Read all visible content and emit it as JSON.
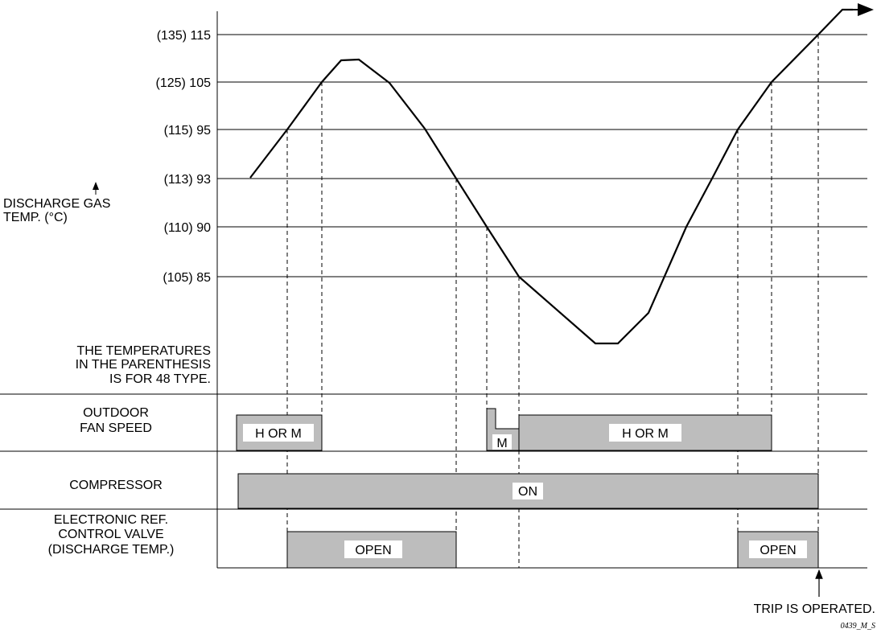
{
  "y_axis": {
    "title_line1": "DISCHARGE GAS",
    "title_line2": "TEMP. (°C)",
    "ticks": [
      {
        "label": "(135) 115",
        "value": 115
      },
      {
        "label": "(125) 105",
        "value": 105
      },
      {
        "label": "(115) 95",
        "value": 95
      },
      {
        "label": "(113) 93",
        "value": 93
      },
      {
        "label": "(110) 90",
        "value": 90
      },
      {
        "label": "(105) 85",
        "value": 85
      }
    ]
  },
  "note": {
    "line1": "THE TEMPERATURES",
    "line2": "IN THE PARENTHESIS",
    "line3": "IS FOR 48 TYPE."
  },
  "rows": {
    "fan": {
      "line1": "OUTDOOR",
      "line2": "FAN SPEED",
      "bar1_label": "H OR M",
      "bar2_label": "M",
      "bar3_label": "H OR M"
    },
    "compressor": {
      "label": "COMPRESSOR",
      "bar_label": "ON"
    },
    "valve": {
      "line1": "ELECTRONIC REF.",
      "line2": "CONTROL VALVE",
      "line3": "(DISCHARGE TEMP.)",
      "bar1_label": "OPEN",
      "bar2_label": "OPEN"
    }
  },
  "trip_label": "TRIP IS OPERATED.",
  "figure_code": "0439_M_S"
}
